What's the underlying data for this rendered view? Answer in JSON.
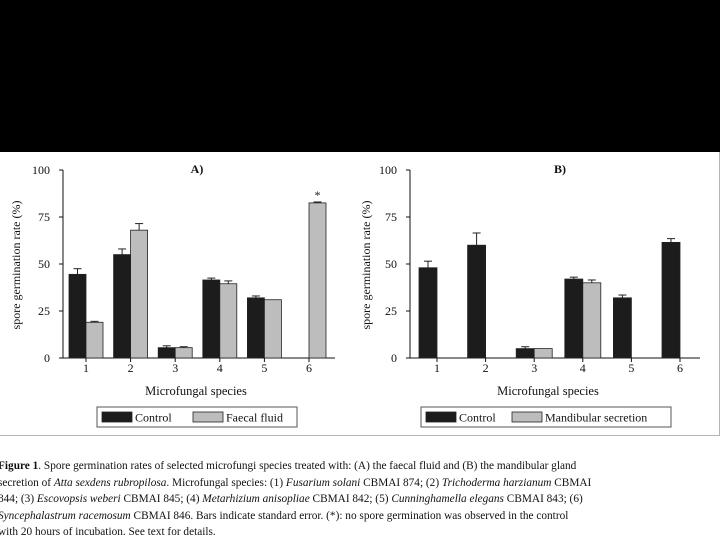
{
  "colors": {
    "top_band": "#000000",
    "control": "#1c1c1c",
    "faecal_fluid": "#bdbdbd",
    "mandibular_secretion": "#bdbdbd"
  },
  "chart_data": [
    {
      "type": "bar",
      "title": "A)",
      "xlabel": "Microfungal species",
      "ylabel": "spore germination rate (%)",
      "categories": [
        "1",
        "2",
        "3",
        "4",
        "5",
        "6"
      ],
      "ylim": [
        0,
        100
      ],
      "yticks": [
        "0",
        "25",
        "50",
        "75",
        "100"
      ],
      "grid": false,
      "legend_position": "bottom",
      "series": [
        {
          "name": "Control",
          "values": [
            44.5,
            55,
            5.5,
            41.5,
            32,
            null
          ],
          "errors": [
            3,
            3,
            1,
            1,
            1,
            null
          ]
        },
        {
          "name": "Faecal fluid",
          "values": [
            19,
            68,
            5.5,
            39.5,
            31,
            82.5
          ],
          "errors": [
            0.5,
            3.5,
            0.5,
            1.5,
            0,
            0.5
          ]
        }
      ],
      "annotations": [
        {
          "category": "6",
          "text": "*"
        }
      ]
    },
    {
      "type": "bar",
      "title": "B)",
      "xlabel": "Microfungal species",
      "ylabel": "spore germination rate (%)",
      "categories": [
        "1",
        "2",
        "3",
        "4",
        "5",
        "6"
      ],
      "ylim": [
        0,
        100
      ],
      "yticks": [
        "0",
        "25",
        "50",
        "75",
        "100"
      ],
      "grid": false,
      "legend_position": "bottom",
      "series": [
        {
          "name": "Control",
          "values": [
            48,
            60,
            5,
            42,
            32,
            61.5
          ],
          "errors": [
            3.5,
            6.5,
            1,
            1,
            1.5,
            2
          ]
        },
        {
          "name": "Mandibular secretion",
          "values": [
            null,
            null,
            5,
            40,
            null,
            null
          ],
          "errors": [
            null,
            null,
            0,
            1.5,
            null,
            null
          ]
        }
      ]
    }
  ],
  "caption": {
    "label": "Figure 1",
    "lines": [
      ". Spore germination rates of selected microfungi species treated with: (A) the faecal fluid and (B) the mandibular gland",
      "secretion of ",
      "Atta sexdens rubropilosa",
      ". Microfungal species: (1) ",
      "Fusarium solani",
      " CBMAI 874; (2) ",
      "Trichoderma harzianum",
      " CBMAI",
      "844; (3) ",
      "Escovopsis weberi",
      " CBMAI 845; (4) ",
      "Metarhizium anisopliae",
      " CBMAI 842; (5) ",
      "Cunninghamella elegans",
      " CBMAI 843; (6)",
      "Syncephalastrum racemosum",
      " CBMAI 846. Bars indicate standard error. (*): no spore germination was observed in the control",
      "with 20 hours of incubation. See text for details."
    ]
  }
}
